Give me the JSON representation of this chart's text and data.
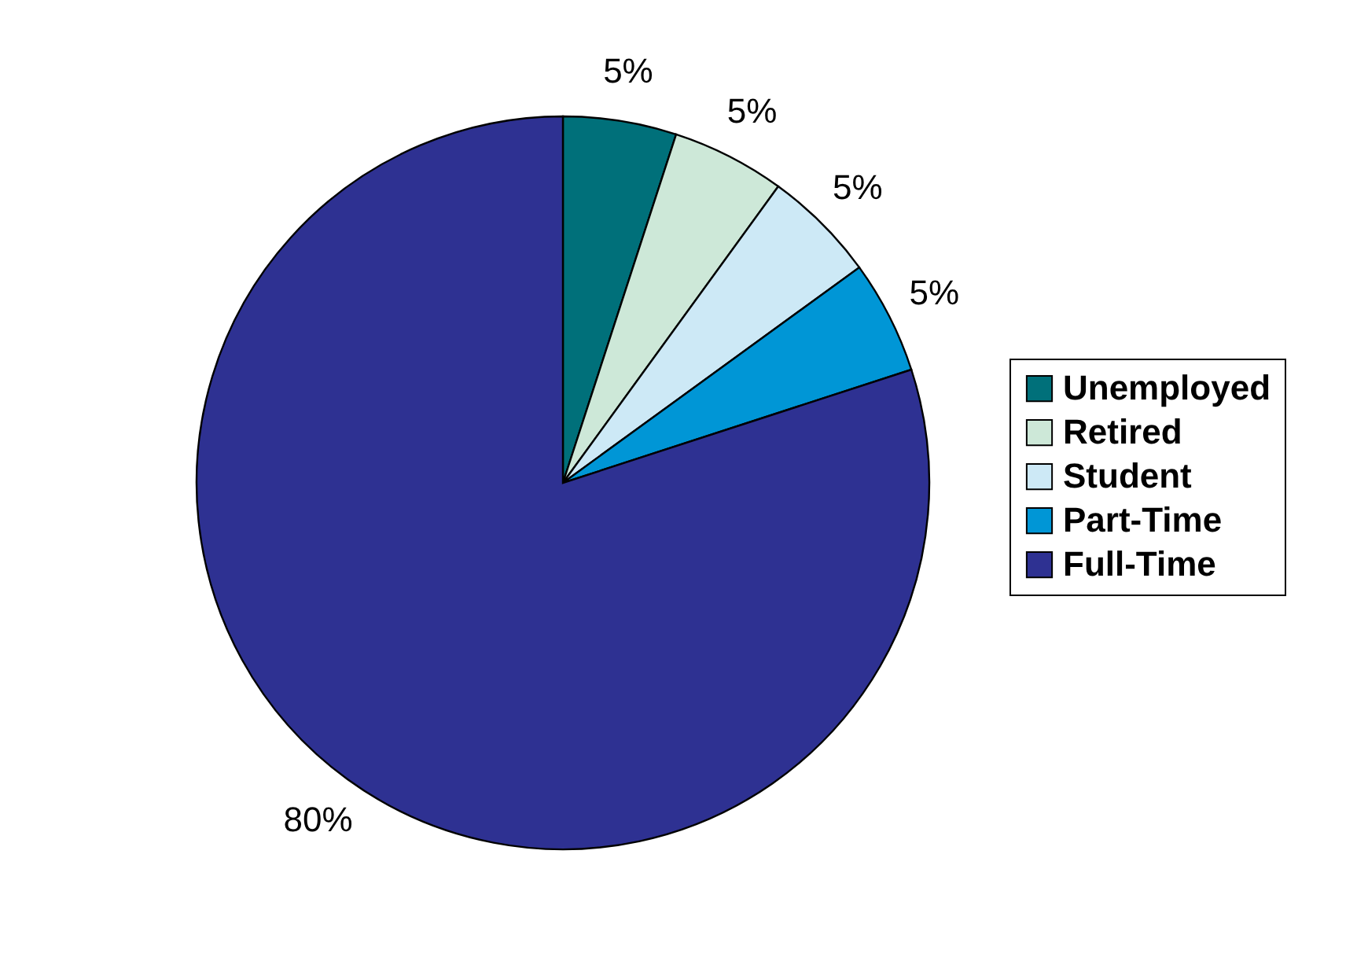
{
  "chart_data": {
    "type": "pie",
    "categories": [
      "Unemployed",
      "Retired",
      "Student",
      "Part-Time",
      "Full-Time"
    ],
    "values": [
      5,
      5,
      5,
      5,
      80
    ],
    "colors": [
      "#00707a",
      "#cde8d8",
      "#cde9f6",
      "#0096d6",
      "#2e3192"
    ],
    "value_labels": [
      "5%",
      "5%",
      "5%",
      "5%",
      "80%"
    ],
    "legend": "right"
  }
}
